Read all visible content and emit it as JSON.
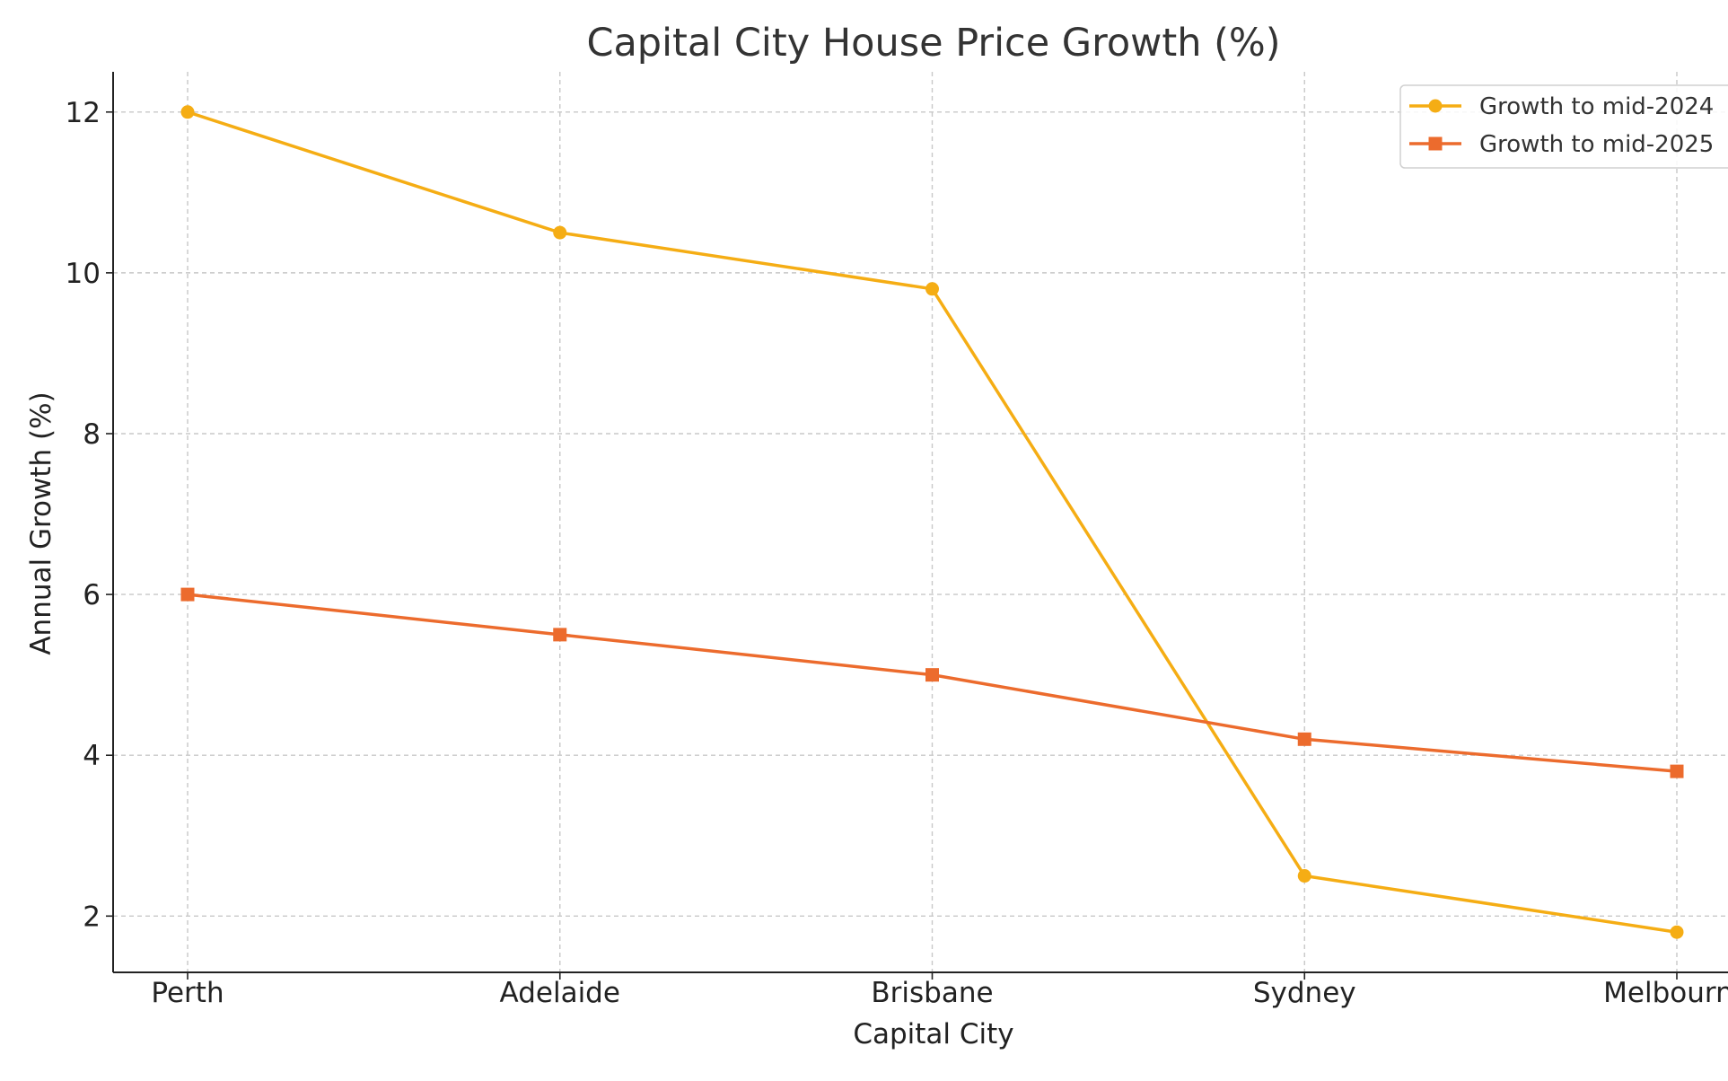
{
  "chart_data": {
    "type": "line",
    "title": "Capital City House Price Growth (%)",
    "xlabel": "Capital City",
    "ylabel": "Annual Growth (%)",
    "categories": [
      "Perth",
      "Adelaide",
      "Brisbane",
      "Sydney",
      "Melbourne"
    ],
    "series": [
      {
        "name": "Growth to mid-2024",
        "values": [
          12.0,
          10.5,
          9.8,
          2.5,
          1.8
        ],
        "color": "#f5ad14",
        "marker": "circle"
      },
      {
        "name": "Growth to mid-2025",
        "values": [
          6.0,
          5.5,
          5.0,
          4.2,
          3.8
        ],
        "color": "#ec6b2d",
        "marker": "square"
      }
    ],
    "yticks": [
      2,
      4,
      6,
      8,
      10,
      12
    ],
    "ylim": [
      1.3,
      12.5
    ],
    "grid": true,
    "legend_position": "top-right"
  }
}
